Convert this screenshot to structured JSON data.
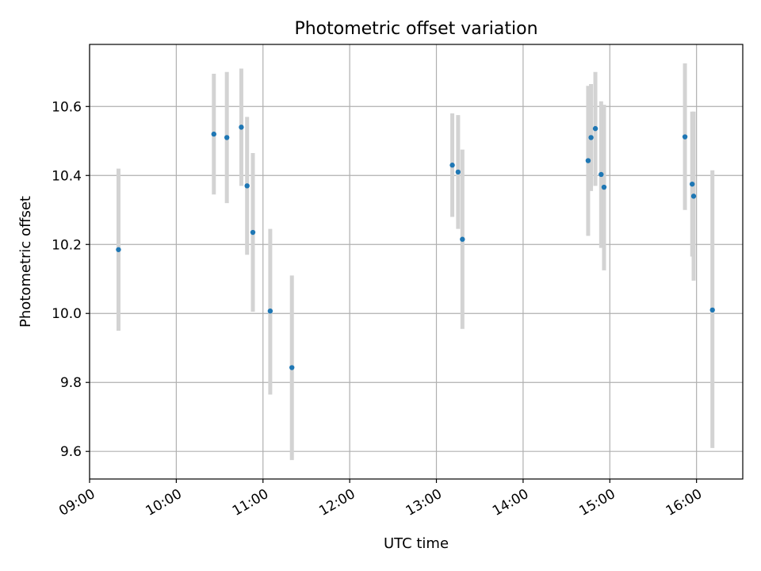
{
  "chart_data": {
    "type": "scatter",
    "title": "Photometric offset variation",
    "xlabel": "UTC time",
    "ylabel": "Photometric offset",
    "xlim": [
      "09:00",
      "16:32"
    ],
    "ylim": [
      9.52,
      10.78
    ],
    "grid": true,
    "x_ticks": [
      "09:00",
      "10:00",
      "11:00",
      "12:00",
      "13:00",
      "14:00",
      "15:00",
      "16:00"
    ],
    "y_ticks": [
      "9.6",
      "9.8",
      "10.0",
      "10.2",
      "10.4",
      "10.6"
    ],
    "point_color": "#1f77b4",
    "errorbar_color": "#d3d3d3",
    "points": [
      {
        "time": "09:20",
        "y": 10.185,
        "low": 9.95,
        "high": 10.42
      },
      {
        "time": "10:26",
        "y": 10.52,
        "low": 10.345,
        "high": 10.695
      },
      {
        "time": "10:35",
        "y": 10.51,
        "low": 10.32,
        "high": 10.7
      },
      {
        "time": "10:45",
        "y": 10.54,
        "low": 10.37,
        "high": 10.71
      },
      {
        "time": "10:49",
        "y": 10.37,
        "low": 10.17,
        "high": 10.57
      },
      {
        "time": "10:53",
        "y": 10.235,
        "low": 10.005,
        "high": 10.465
      },
      {
        "time": "11:05",
        "y": 10.007,
        "low": 9.765,
        "high": 10.245
      },
      {
        "time": "11:20",
        "y": 9.843,
        "low": 9.575,
        "high": 10.11
      },
      {
        "time": "13:11",
        "y": 10.43,
        "low": 10.28,
        "high": 10.58
      },
      {
        "time": "13:15",
        "y": 10.41,
        "low": 10.245,
        "high": 10.575
      },
      {
        "time": "13:18",
        "y": 10.215,
        "low": 9.955,
        "high": 10.475
      },
      {
        "time": "14:45",
        "y": 10.443,
        "low": 10.225,
        "high": 10.66
      },
      {
        "time": "14:47",
        "y": 10.51,
        "low": 10.355,
        "high": 10.665
      },
      {
        "time": "14:50",
        "y": 10.536,
        "low": 10.37,
        "high": 10.7
      },
      {
        "time": "14:54",
        "y": 10.403,
        "low": 10.19,
        "high": 10.615
      },
      {
        "time": "14:56",
        "y": 10.366,
        "low": 10.125,
        "high": 10.605
      },
      {
        "time": "15:52",
        "y": 10.512,
        "low": 10.3,
        "high": 10.725
      },
      {
        "time": "15:57",
        "y": 10.375,
        "low": 10.165,
        "high": 10.585
      },
      {
        "time": "15:58",
        "y": 10.34,
        "low": 10.095,
        "high": 10.585
      },
      {
        "time": "16:11",
        "y": 10.01,
        "low": 9.61,
        "high": 10.415
      }
    ]
  }
}
